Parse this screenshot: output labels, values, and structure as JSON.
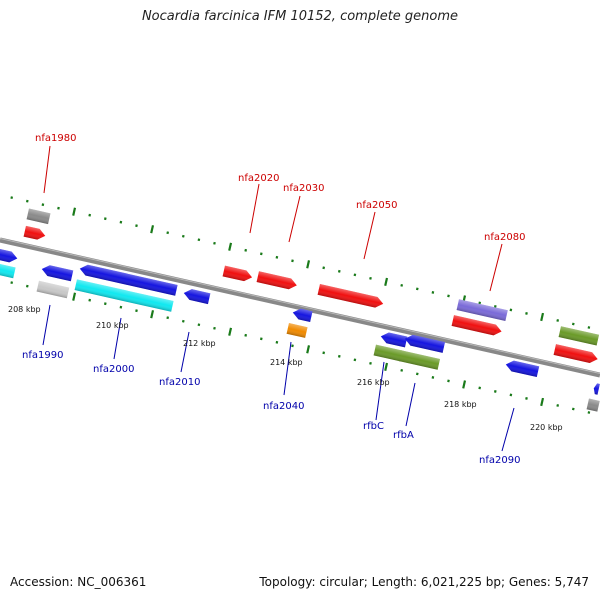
{
  "title": "Nocardia farcinica IFM 10152, complete genome",
  "footer": {
    "accession": "Accession: NC_006361",
    "summary": "Topology: circular; Length: 6,021,225 bp; Genes: 5,747"
  },
  "colors": {
    "backbone": "#888888",
    "tick": "#1a7a1a",
    "red": "#f01010",
    "blue": "#1515e0",
    "cyan": "#10e8f0",
    "gray": "#8a8a8a",
    "lightgray": "#c8c8c8",
    "orange": "#f08a00",
    "olive": "#6a9a28",
    "purple": "#7a6ad8",
    "label_top": "#cc0000",
    "label_bottom": "#0000aa"
  },
  "chart_data": {
    "type": "genome-map",
    "scale_labels": [
      "208 kbp",
      "210 kbp",
      "212 kbp",
      "214 kbp",
      "216 kbp",
      "218 kbp",
      "220 kbp"
    ],
    "gene_labels_top": [
      "nfa1980",
      "nfa2020",
      "nfa2030",
      "nfa2050",
      "nfa2080"
    ],
    "gene_labels_bottom": [
      "nfa1990",
      "nfa2000",
      "nfa2010",
      "nfa2040",
      "rfbC",
      "rfbA",
      "nfa2090"
    ]
  }
}
